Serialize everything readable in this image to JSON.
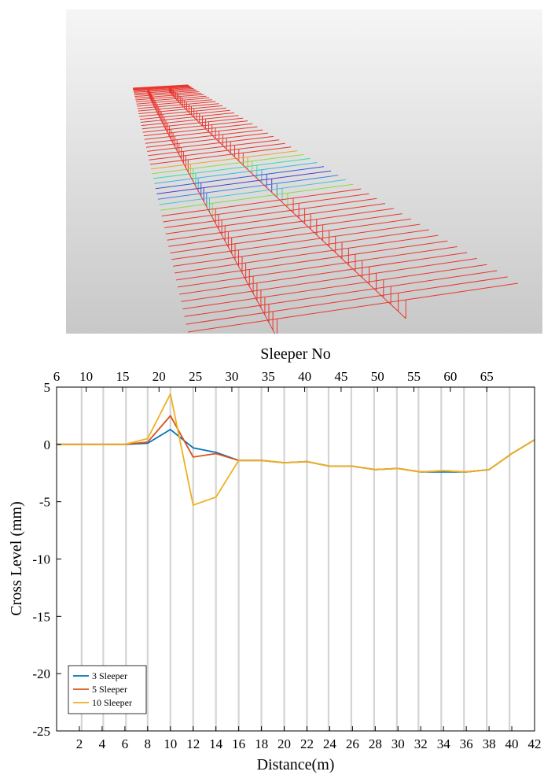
{
  "chart_data": {
    "type": "line",
    "title": "",
    "top_axis": {
      "label": "Sleeper No",
      "ticks": [
        "6",
        "10",
        "15",
        "20",
        "25",
        "30",
        "35",
        "40",
        "45",
        "50",
        "55",
        "60",
        "65"
      ],
      "tick_positions_distance": [
        0,
        2.6,
        5.8,
        9.0,
        12.2,
        15.4,
        18.6,
        21.8,
        25.0,
        28.2,
        31.4,
        34.6,
        37.8
      ]
    },
    "xlabel": "Distance(m)",
    "ylabel": "Cross Level (mm)",
    "xlim": [
      0,
      42
    ],
    "ylim": [
      -25,
      5
    ],
    "xticks": [
      2,
      4,
      6,
      8,
      10,
      12,
      14,
      16,
      18,
      20,
      22,
      24,
      26,
      28,
      30,
      32,
      34,
      36,
      38,
      40,
      42
    ],
    "yticks": [
      5,
      0,
      -5,
      -10,
      -15,
      -20,
      -25
    ],
    "vertical_grid_distance": [
      2.2,
      4.1,
      6.1,
      8.0,
      10.0,
      12.0,
      14.0,
      16.0,
      18.0,
      20.0,
      22.0,
      23.9,
      25.9,
      27.9,
      29.9,
      31.8,
      33.8,
      35.8,
      37.8,
      39.8
    ],
    "legend_position": "bottom-left",
    "series": [
      {
        "name": "3 Sleeper",
        "color": "#0072BD",
        "x": [
          0,
          6,
          8,
          10,
          12,
          14,
          16,
          18,
          20,
          22,
          24,
          26,
          28,
          30,
          32,
          34,
          36,
          38,
          40,
          42
        ],
        "y": [
          0,
          0,
          0.1,
          1.3,
          -0.3,
          -0.7,
          -1.4,
          -1.4,
          -1.6,
          -1.5,
          -1.9,
          -1.9,
          -2.2,
          -2.1,
          -2.4,
          -2.4,
          -2.4,
          -2.2,
          -0.8,
          0.4
        ]
      },
      {
        "name": "5 Sleeper",
        "color": "#D95319",
        "x": [
          0,
          6,
          8,
          10,
          12,
          14,
          16,
          18,
          20,
          22,
          24,
          26,
          28,
          30,
          32,
          34,
          36,
          38,
          40,
          42
        ],
        "y": [
          0,
          0,
          0.2,
          2.5,
          -1.1,
          -0.8,
          -1.4,
          -1.4,
          -1.6,
          -1.5,
          -1.9,
          -1.9,
          -2.2,
          -2.1,
          -2.4,
          -2.3,
          -2.4,
          -2.2,
          -0.8,
          0.4
        ]
      },
      {
        "name": "10 Sleeper",
        "color": "#EDB120",
        "x": [
          0,
          6,
          8,
          10,
          12,
          14,
          16,
          18,
          20,
          22,
          24,
          26,
          28,
          30,
          32,
          34,
          36,
          38,
          40,
          42
        ],
        "y": [
          0,
          0,
          0.5,
          4.4,
          -5.3,
          -4.6,
          -1.4,
          -1.4,
          -1.6,
          -1.5,
          -1.9,
          -1.9,
          -2.2,
          -2.1,
          -2.4,
          -2.3,
          -2.4,
          -2.2,
          -0.8,
          0.4
        ]
      }
    ]
  },
  "render_3d": {
    "description_colors": {
      "background_top": "#f4f4f4",
      "background_bottom": "#c9c9c9",
      "mesh": "#e8362e",
      "deflection_colors": [
        "#f0a030",
        "#8fd944",
        "#3ad9a8",
        "#39b5e0",
        "#3655d9",
        "#4b3ad0"
      ]
    }
  }
}
